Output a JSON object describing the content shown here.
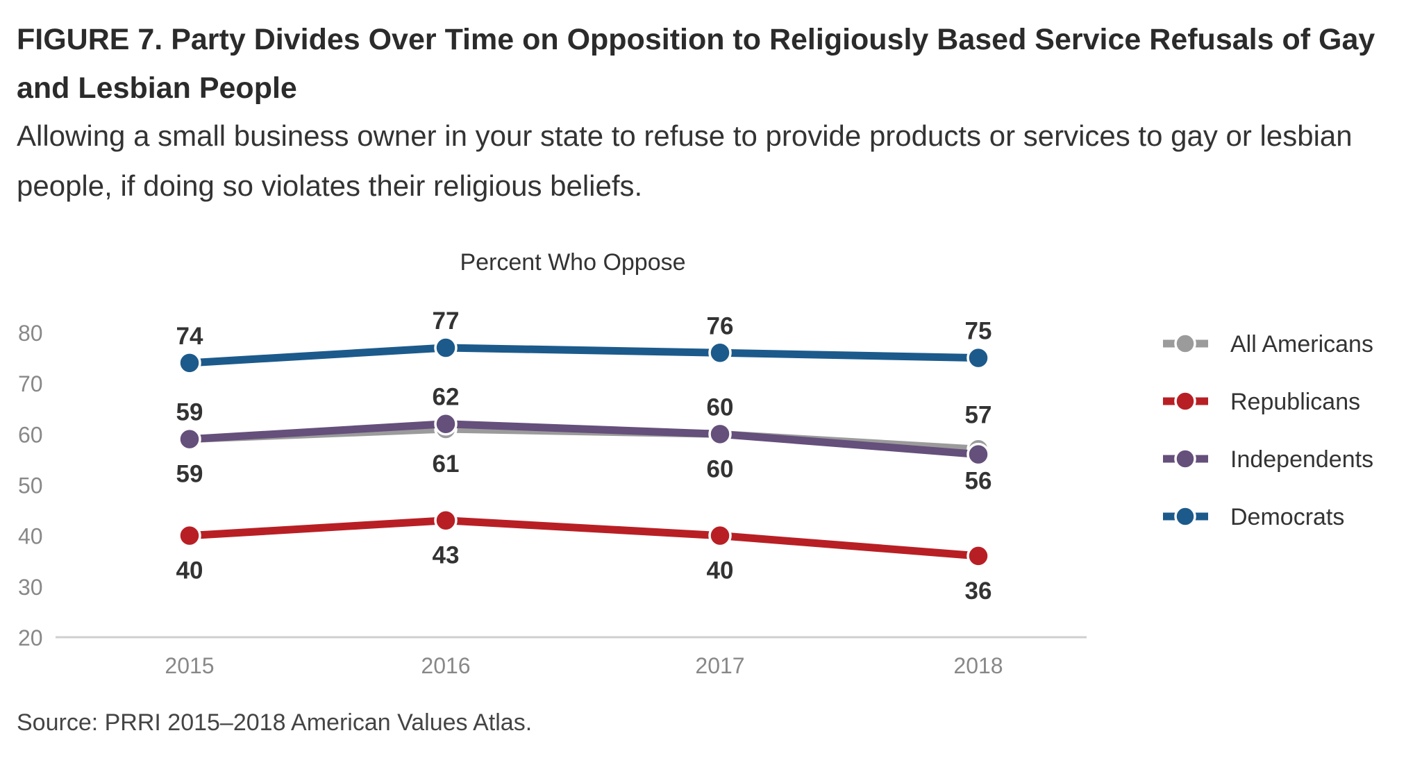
{
  "header": {
    "title": "FIGURE 7.  Party Divides Over Time on Opposition to Religiously Based Service Refusals of Gay and Lesbian People",
    "subtitle": "Allowing a small business owner in your state to refuse to provide products or services to gay or lesbian people, if doing so violates their religious beliefs."
  },
  "footer": {
    "source": "Source: PRRI 2015–2018 American Values Atlas."
  },
  "chart_data": {
    "type": "line",
    "title": "Percent Who Oppose",
    "x": [
      "2015",
      "2016",
      "2017",
      "2018"
    ],
    "ylim": [
      20,
      80
    ],
    "yticks": [
      20,
      30,
      40,
      50,
      60,
      70,
      80
    ],
    "grid": false,
    "legend_position": "right",
    "series": [
      {
        "name": "All Americans",
        "color": "#9b9b9b",
        "values": [
          59,
          61,
          60,
          57
        ]
      },
      {
        "name": "Republicans",
        "color": "#b81f24",
        "values": [
          40,
          43,
          40,
          36
        ]
      },
      {
        "name": "Independents",
        "color": "#654f7b",
        "values": [
          59,
          62,
          60,
          56
        ]
      },
      {
        "name": "Democrats",
        "color": "#1c5a8b",
        "values": [
          74,
          77,
          76,
          75
        ]
      }
    ]
  }
}
